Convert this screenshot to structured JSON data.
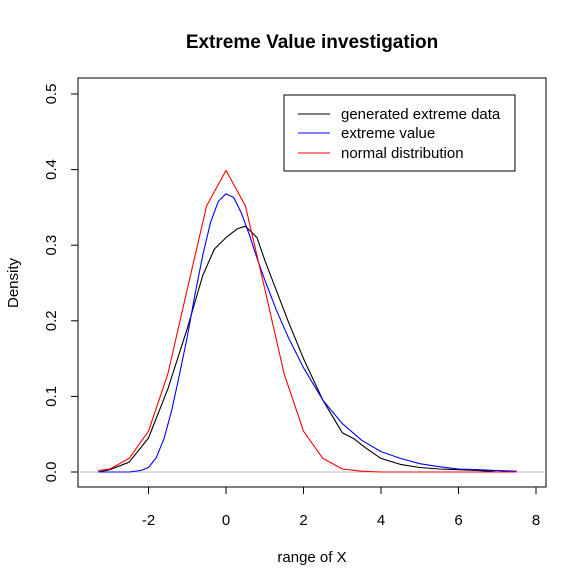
{
  "chart_data": {
    "type": "line",
    "title": "Extreme Value investigation",
    "xlabel": "range of X",
    "ylabel": "Density",
    "xlim": [
      -3.5,
      8.0
    ],
    "ylim": [
      -0.02,
      0.52
    ],
    "xticks": [
      -2,
      0,
      2,
      4,
      6,
      8
    ],
    "yticks": [
      0.0,
      0.1,
      0.2,
      0.3,
      0.4,
      0.5
    ],
    "xtick_labels": [
      "-2",
      "0",
      "2",
      "4",
      "6",
      "8"
    ],
    "ytick_labels": [
      "0.0",
      "0.1",
      "0.2",
      "0.3",
      "0.4",
      "0.5"
    ],
    "grid": false,
    "legend_position": "top-right",
    "baseline": {
      "y": 0,
      "color": "#bebebe"
    },
    "series": [
      {
        "name": "generated extreme data",
        "color": "#000000",
        "x": [
          -3.3,
          -3.0,
          -2.5,
          -2.0,
          -1.5,
          -1.0,
          -0.6,
          -0.3,
          0.0,
          0.3,
          0.5,
          0.8,
          1.0,
          1.3,
          1.6,
          2.0,
          2.5,
          3.0,
          3.3,
          3.6,
          4.0,
          4.5,
          5.0,
          5.5,
          6.0,
          6.5,
          6.8,
          7.0,
          7.2,
          7.5
        ],
        "y": [
          0.0,
          0.003,
          0.013,
          0.045,
          0.11,
          0.19,
          0.26,
          0.295,
          0.31,
          0.322,
          0.325,
          0.31,
          0.28,
          0.24,
          0.2,
          0.15,
          0.095,
          0.052,
          0.044,
          0.032,
          0.018,
          0.01,
          0.006,
          0.004,
          0.003,
          0.002,
          0.001,
          0.002,
          0.001,
          0.0
        ]
      },
      {
        "name": "extreme value",
        "color": "#0000ff",
        "x": [
          -3.3,
          -3.0,
          -2.5,
          -2.2,
          -2.0,
          -1.8,
          -1.6,
          -1.4,
          -1.2,
          -1.0,
          -0.8,
          -0.6,
          -0.4,
          -0.2,
          0.0,
          0.2,
          0.4,
          0.6,
          0.8,
          1.0,
          1.3,
          1.6,
          2.0,
          2.5,
          3.0,
          3.5,
          4.0,
          4.5,
          5.0,
          5.5,
          6.0,
          6.5,
          7.0,
          7.5
        ],
        "y": [
          0.0,
          0.0,
          0.0,
          0.002,
          0.006,
          0.019,
          0.044,
          0.082,
          0.129,
          0.179,
          0.235,
          0.287,
          0.33,
          0.358,
          0.368,
          0.363,
          0.342,
          0.314,
          0.283,
          0.254,
          0.214,
          0.179,
          0.138,
          0.095,
          0.064,
          0.042,
          0.027,
          0.018,
          0.011,
          0.007,
          0.004,
          0.003,
          0.002,
          0.001
        ]
      },
      {
        "name": "normal distribution",
        "color": "#ff0000",
        "x": [
          -3.3,
          -3.0,
          -2.5,
          -2.0,
          -1.5,
          -1.0,
          -0.5,
          0.0,
          0.5,
          1.0,
          1.5,
          2.0,
          2.5,
          3.0,
          3.5,
          4.0,
          5.0,
          6.0,
          7.0,
          7.5
        ],
        "y": [
          0.002,
          0.004,
          0.018,
          0.054,
          0.13,
          0.242,
          0.352,
          0.399,
          0.352,
          0.242,
          0.13,
          0.054,
          0.018,
          0.004,
          0.001,
          0.0,
          0.0,
          0.0,
          0.0,
          0.0
        ]
      }
    ]
  }
}
